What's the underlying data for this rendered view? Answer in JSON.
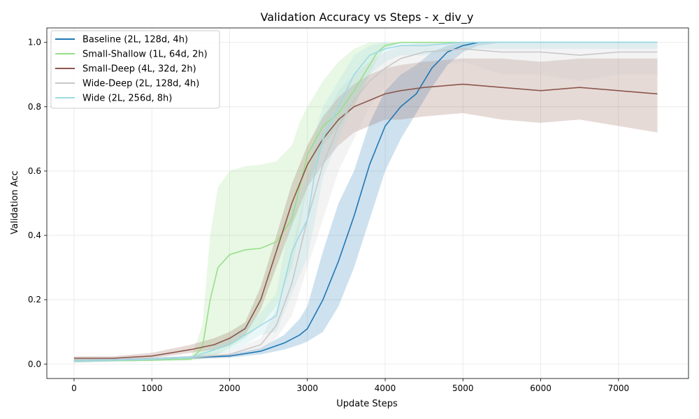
{
  "chart_data": {
    "type": "line",
    "title": "Validation Accuracy vs Steps - x_div_y",
    "xlabel": "Update Steps",
    "ylabel": "Validation Acc",
    "xlim": [
      -350,
      7900
    ],
    "ylim": [
      -0.045,
      1.045
    ],
    "xticks": [
      0,
      1000,
      2000,
      3000,
      4000,
      5000,
      6000,
      7000
    ],
    "yticks": [
      0.0,
      0.2,
      0.4,
      0.6,
      0.8,
      1.0
    ],
    "xtick_labels": [
      "0",
      "1000",
      "2000",
      "3000",
      "4000",
      "5000",
      "6000",
      "7000"
    ],
    "ytick_labels": [
      "0.0",
      "0.2",
      "0.4",
      "0.6",
      "0.8",
      "1.0"
    ],
    "grid": true,
    "legend_position": "top-left",
    "series": [
      {
        "name": "Baseline (2L, 128d, 4h)",
        "color": "#1f77b4",
        "x": [
          0,
          500,
          1000,
          1500,
          2000,
          2400,
          2700,
          2900,
          3000,
          3200,
          3400,
          3600,
          3800,
          4000,
          4200,
          4400,
          4600,
          4800,
          5000,
          5200,
          5500,
          6000,
          6500,
          7000,
          7500
        ],
        "y": [
          0.01,
          0.012,
          0.015,
          0.02,
          0.025,
          0.04,
          0.065,
          0.09,
          0.11,
          0.2,
          0.32,
          0.46,
          0.62,
          0.74,
          0.8,
          0.84,
          0.92,
          0.97,
          0.99,
          1.0,
          1.0,
          1.0,
          1.0,
          1.0,
          1.0
        ],
        "lower": [
          0.005,
          0.008,
          0.01,
          0.015,
          0.02,
          0.03,
          0.045,
          0.06,
          0.07,
          0.1,
          0.18,
          0.3,
          0.45,
          0.6,
          0.7,
          0.78,
          0.86,
          0.93,
          0.97,
          0.99,
          1.0,
          1.0,
          1.0,
          1.0,
          1.0
        ],
        "upper": [
          0.015,
          0.016,
          0.02,
          0.025,
          0.03,
          0.05,
          0.09,
          0.14,
          0.18,
          0.35,
          0.5,
          0.6,
          0.75,
          0.85,
          0.9,
          0.93,
          0.97,
          0.99,
          1.0,
          1.0,
          1.0,
          1.0,
          1.0,
          1.0,
          1.0
        ]
      },
      {
        "name": "Small-Shallow (1L, 64d, 2h)",
        "color": "#98df8a",
        "x": [
          0,
          500,
          1000,
          1500,
          1650,
          1750,
          1850,
          2000,
          2200,
          2400,
          2600,
          2800,
          2900,
          3000,
          3200,
          3400,
          3600,
          3800,
          3900,
          4000,
          4200,
          4500,
          5000,
          5500,
          6000,
          6500,
          7000,
          7500
        ],
        "y": [
          0.01,
          0.011,
          0.012,
          0.015,
          0.05,
          0.2,
          0.3,
          0.34,
          0.355,
          0.36,
          0.38,
          0.45,
          0.55,
          0.65,
          0.74,
          0.78,
          0.85,
          0.93,
          0.97,
          0.99,
          1.0,
          1.0,
          1.0,
          1.0,
          1.0,
          1.0,
          1.0,
          1.0
        ],
        "lower": [
          0.005,
          0.008,
          0.009,
          0.011,
          0.015,
          0.02,
          0.03,
          0.05,
          0.08,
          0.12,
          0.18,
          0.3,
          0.42,
          0.55,
          0.68,
          0.74,
          0.8,
          0.9,
          0.95,
          0.98,
          1.0,
          1.0,
          1.0,
          1.0,
          1.0,
          1.0,
          1.0,
          1.0
        ],
        "upper": [
          0.015,
          0.014,
          0.015,
          0.02,
          0.12,
          0.4,
          0.55,
          0.6,
          0.615,
          0.62,
          0.63,
          0.68,
          0.75,
          0.8,
          0.88,
          0.94,
          0.98,
          1.0,
          1.0,
          1.0,
          1.0,
          1.0,
          1.0,
          1.0,
          1.0,
          1.0,
          1.0,
          1.0
        ]
      },
      {
        "name": "Small-Deep (4L, 32d, 2h)",
        "color": "#8c564b",
        "x": [
          0,
          500,
          1000,
          1500,
          1800,
          2000,
          2200,
          2400,
          2600,
          2800,
          3000,
          3200,
          3400,
          3600,
          3800,
          4000,
          4200,
          4500,
          5000,
          5500,
          6000,
          6500,
          7000,
          7500
        ],
        "y": [
          0.018,
          0.018,
          0.025,
          0.045,
          0.06,
          0.08,
          0.11,
          0.2,
          0.35,
          0.5,
          0.62,
          0.7,
          0.76,
          0.8,
          0.82,
          0.84,
          0.85,
          0.86,
          0.87,
          0.86,
          0.85,
          0.86,
          0.85,
          0.84
        ],
        "lower": [
          0.012,
          0.012,
          0.018,
          0.035,
          0.045,
          0.06,
          0.09,
          0.17,
          0.3,
          0.43,
          0.55,
          0.62,
          0.68,
          0.72,
          0.74,
          0.76,
          0.76,
          0.77,
          0.78,
          0.76,
          0.75,
          0.76,
          0.74,
          0.72
        ],
        "upper": [
          0.024,
          0.024,
          0.035,
          0.06,
          0.08,
          0.1,
          0.13,
          0.24,
          0.4,
          0.56,
          0.68,
          0.77,
          0.83,
          0.87,
          0.9,
          0.92,
          0.93,
          0.94,
          0.95,
          0.95,
          0.94,
          0.95,
          0.95,
          0.95
        ]
      },
      {
        "name": "Wide-Deep (2L, 128d, 4h)",
        "color": "#c7c7c7",
        "x": [
          0,
          500,
          1000,
          1500,
          2000,
          2400,
          2600,
          2800,
          3000,
          3200,
          3400,
          3600,
          3800,
          4000,
          4200,
          4500,
          5000,
          5500,
          6000,
          6500,
          7000,
          7500
        ],
        "y": [
          0.01,
          0.012,
          0.015,
          0.02,
          0.03,
          0.06,
          0.12,
          0.25,
          0.45,
          0.62,
          0.74,
          0.82,
          0.88,
          0.92,
          0.95,
          0.97,
          0.98,
          0.97,
          0.97,
          0.96,
          0.97,
          0.97
        ],
        "lower": [
          0.005,
          0.008,
          0.01,
          0.015,
          0.02,
          0.04,
          0.08,
          0.15,
          0.3,
          0.45,
          0.6,
          0.7,
          0.8,
          0.86,
          0.9,
          0.92,
          0.94,
          0.9,
          0.9,
          0.88,
          0.9,
          0.9
        ],
        "upper": [
          0.015,
          0.016,
          0.02,
          0.025,
          0.04,
          0.08,
          0.17,
          0.35,
          0.58,
          0.75,
          0.85,
          0.9,
          0.94,
          0.97,
          0.99,
          1.0,
          1.0,
          1.0,
          1.0,
          1.0,
          1.0,
          1.0
        ]
      },
      {
        "name": "Wide (2L, 256d, 8h)",
        "color": "#9edae5",
        "x": [
          0,
          500,
          1000,
          1500,
          2000,
          2200,
          2400,
          2600,
          2800,
          3000,
          3100,
          3200,
          3400,
          3600,
          3800,
          4000,
          4200,
          4500,
          5000,
          5500,
          6000,
          6500,
          7000,
          7500
        ],
        "y": [
          0.01,
          0.012,
          0.015,
          0.02,
          0.06,
          0.09,
          0.12,
          0.15,
          0.35,
          0.45,
          0.6,
          0.7,
          0.8,
          0.9,
          0.96,
          0.98,
          0.99,
          0.99,
          1.0,
          1.0,
          1.0,
          1.0,
          1.0,
          1.0
        ],
        "lower": [
          0.005,
          0.008,
          0.01,
          0.015,
          0.04,
          0.06,
          0.09,
          0.1,
          0.22,
          0.33,
          0.45,
          0.58,
          0.7,
          0.82,
          0.9,
          0.94,
          0.96,
          0.96,
          0.98,
          0.98,
          0.98,
          0.98,
          0.98,
          0.98
        ],
        "upper": [
          0.015,
          0.016,
          0.02,
          0.025,
          0.08,
          0.12,
          0.16,
          0.22,
          0.48,
          0.58,
          0.72,
          0.8,
          0.88,
          0.96,
          0.99,
          1.0,
          1.0,
          1.0,
          1.0,
          1.0,
          1.0,
          1.0,
          1.0,
          1.0
        ]
      }
    ]
  }
}
